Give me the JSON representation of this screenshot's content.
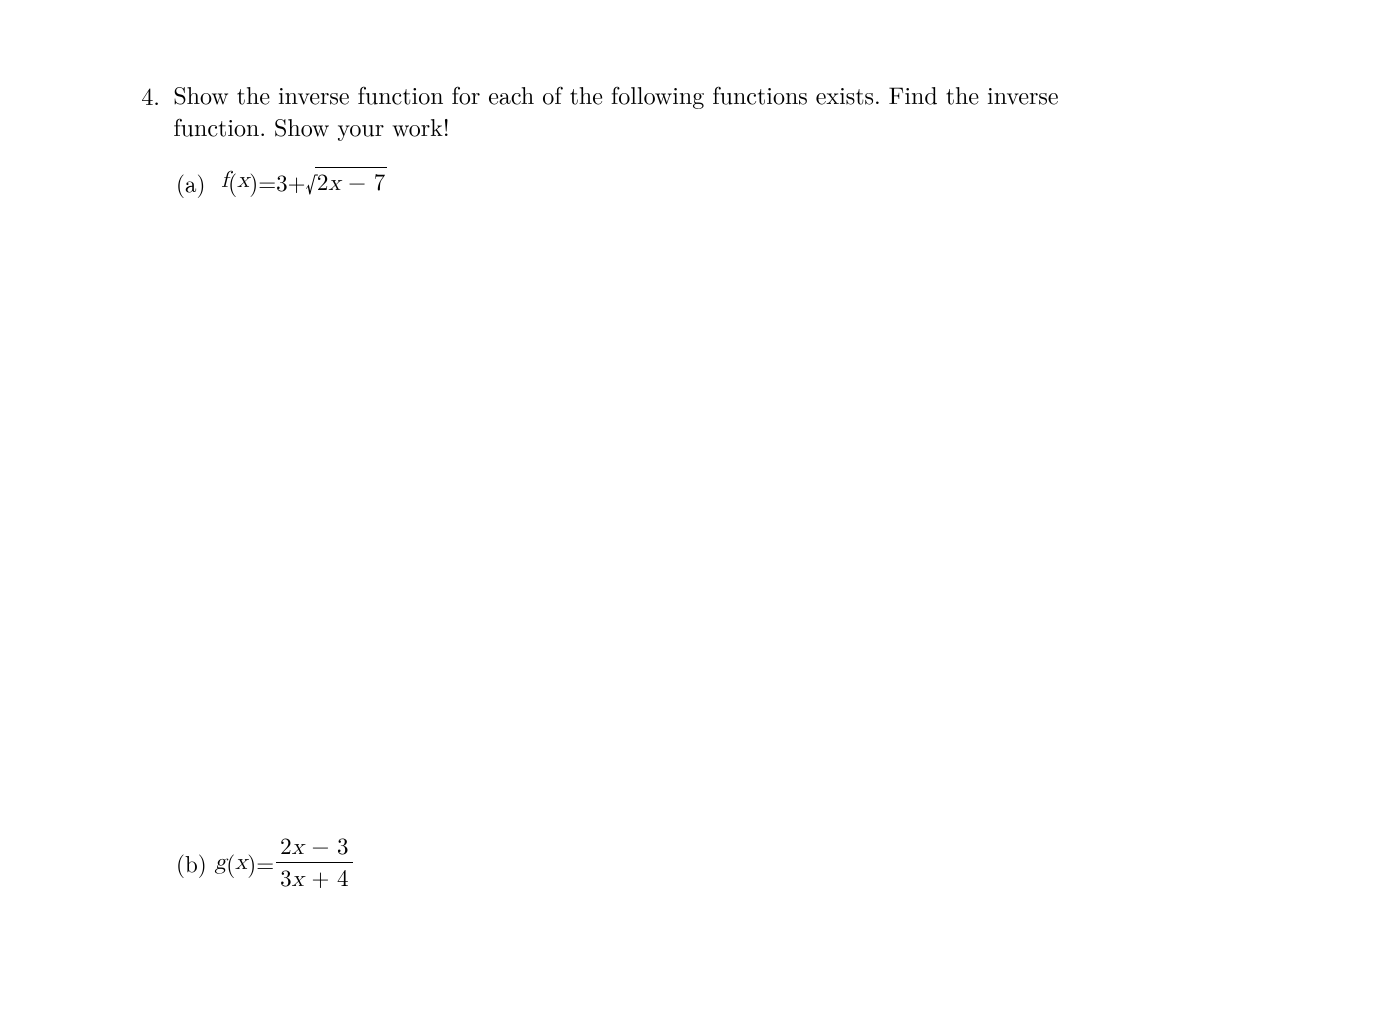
{
  "colors": {
    "background": "#ffffff",
    "text": "#000000"
  },
  "typography": {
    "font_family": "Latin Modern Roman / CMU Serif / Times New Roman",
    "base_fontsize_pt": 18
  },
  "problem": {
    "number": "4.",
    "text_line1": "Show the inverse function for each of the following functions exists.  Find the inverse",
    "text_line2": "function.  Show your work!"
  },
  "parts": {
    "a": {
      "label": "(a)",
      "lhs_fn": "f",
      "lhs_arg": "x",
      "eq": " = ",
      "const": "3",
      "plus": " + ",
      "sqrt_inner_coeff": "2",
      "sqrt_inner_var": "x",
      "sqrt_inner_op": " − ",
      "sqrt_inner_const": "7"
    },
    "b": {
      "label": "(b)",
      "lhs_fn": "g",
      "lhs_arg": "x",
      "eq": " = ",
      "num_coeff": "2",
      "num_var": "x",
      "num_op": " − ",
      "num_const": "3",
      "den_coeff": "3",
      "den_var": "x",
      "den_op": " + ",
      "den_const": "4"
    }
  }
}
